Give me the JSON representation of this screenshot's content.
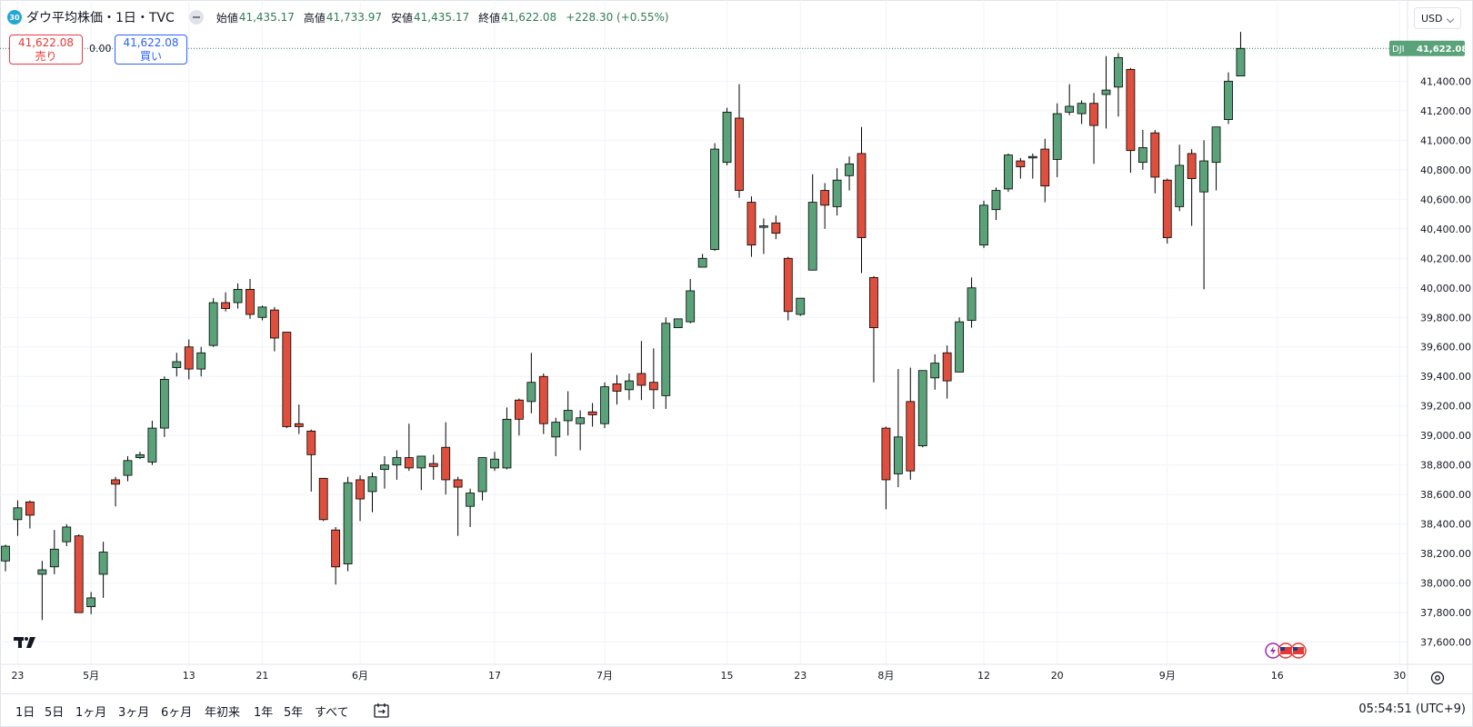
{
  "symbol": {
    "badge": "30",
    "title": "ダウ平均株価・1日・TVC",
    "open_label": "始値",
    "open": "41,435.17",
    "high_label": "高値",
    "high": "41,733.97",
    "low_label": "安値",
    "low": "41,435.17",
    "close_label": "終値",
    "close": "41,622.08",
    "change": "+228.30 (+0.55%)"
  },
  "trade": {
    "sell_price": "41,622.08",
    "sell_label": "売り",
    "spread": "0.00",
    "buy_price": "41,622.08",
    "buy_label": "買い"
  },
  "currency": "USD",
  "price_tag": {
    "ticker": "DJI",
    "value": "41,622.08"
  },
  "ranges": [
    "1日",
    "5日",
    "1ヶ月",
    "3ヶ月",
    "6ヶ月",
    "年初来",
    "1年",
    "5年",
    "すべて"
  ],
  "clock": "05:54:51 (UTC+9)",
  "colors": {
    "up": "#5aa37a",
    "down": "#df4f3d",
    "grid": "#f0f3fa",
    "dotted": "#2e7d50"
  },
  "icons": [
    "collapse-icon",
    "tradingview-logo-icon",
    "compare-range-icon",
    "settings-icon",
    "us-flag-icon",
    "lightning-icon"
  ],
  "chart_data": {
    "type": "candlestick",
    "ylim": [
      37450,
      41950
    ],
    "y_ticks": [
      37600,
      37800,
      38000,
      38200,
      38400,
      38600,
      38800,
      39000,
      39200,
      39400,
      39600,
      39800,
      40000,
      40200,
      40400,
      40600,
      40800,
      41000,
      41200,
      41400
    ],
    "y_tick_labels": [
      "37,600.00",
      "37,800.00",
      "38,000.00",
      "38,200.00",
      "38,400.00",
      "38,600.00",
      "38,800.00",
      "39,000.00",
      "39,200.00",
      "39,400.00",
      "39,600.00",
      "39,800.00",
      "40,000.00",
      "40,200.00",
      "40,400.00",
      "40,600.00",
      "40,800.00",
      "41,000.00",
      "41,200.00",
      "41,400.00"
    ],
    "x_labels": [
      {
        "i": 1,
        "label": "23"
      },
      {
        "i": 7,
        "label": "5月"
      },
      {
        "i": 15,
        "label": "13"
      },
      {
        "i": 21,
        "label": "21"
      },
      {
        "i": 29,
        "label": "6月"
      },
      {
        "i": 40,
        "label": "17"
      },
      {
        "i": 49,
        "label": "7月"
      },
      {
        "i": 59,
        "label": "15"
      },
      {
        "i": 65,
        "label": "23"
      },
      {
        "i": 72,
        "label": "8月"
      },
      {
        "i": 80,
        "label": "12"
      },
      {
        "i": 86,
        "label": "20"
      },
      {
        "i": 95,
        "label": "9月"
      },
      {
        "i": 104,
        "label": "16"
      },
      {
        "i": 114,
        "label": "30"
      }
    ],
    "candles": [
      {
        "o": 38150,
        "h": 38260,
        "l": 38080,
        "c": 38250
      },
      {
        "o": 38430,
        "h": 38560,
        "l": 38320,
        "c": 38510
      },
      {
        "o": 38550,
        "h": 38560,
        "l": 38370,
        "c": 38460
      },
      {
        "o": 38060,
        "h": 38150,
        "l": 37750,
        "c": 38090
      },
      {
        "o": 38110,
        "h": 38360,
        "l": 38060,
        "c": 38230
      },
      {
        "o": 38280,
        "h": 38400,
        "l": 38250,
        "c": 38380
      },
      {
        "o": 38320,
        "h": 38330,
        "l": 37800,
        "c": 37800
      },
      {
        "o": 37840,
        "h": 37940,
        "l": 37790,
        "c": 37900
      },
      {
        "o": 38060,
        "h": 38280,
        "l": 37900,
        "c": 38210
      },
      {
        "o": 38700,
        "h": 38720,
        "l": 38520,
        "c": 38670
      },
      {
        "o": 38730,
        "h": 38860,
        "l": 38690,
        "c": 38830
      },
      {
        "o": 38850,
        "h": 38890,
        "l": 38840,
        "c": 38870
      },
      {
        "o": 38820,
        "h": 39100,
        "l": 38800,
        "c": 39050
      },
      {
        "o": 39050,
        "h": 39400,
        "l": 38990,
        "c": 39380
      },
      {
        "o": 39460,
        "h": 39560,
        "l": 39400,
        "c": 39500
      },
      {
        "o": 39600,
        "h": 39650,
        "l": 39380,
        "c": 39450
      },
      {
        "o": 39450,
        "h": 39600,
        "l": 39400,
        "c": 39560
      },
      {
        "o": 39610,
        "h": 39930,
        "l": 39600,
        "c": 39900
      },
      {
        "o": 39900,
        "h": 39970,
        "l": 39840,
        "c": 39860
      },
      {
        "o": 39900,
        "h": 40030,
        "l": 39860,
        "c": 39990
      },
      {
        "o": 39990,
        "h": 40060,
        "l": 39790,
        "c": 39820
      },
      {
        "o": 39800,
        "h": 39880,
        "l": 39780,
        "c": 39870
      },
      {
        "o": 39850,
        "h": 39870,
        "l": 39570,
        "c": 39660
      },
      {
        "o": 39700,
        "h": 39700,
        "l": 39050,
        "c": 39060
      },
      {
        "o": 39080,
        "h": 39210,
        "l": 39010,
        "c": 39060
      },
      {
        "o": 39030,
        "h": 39040,
        "l": 38620,
        "c": 38870
      },
      {
        "o": 38710,
        "h": 38700,
        "l": 38420,
        "c": 38430
      },
      {
        "o": 38360,
        "h": 38380,
        "l": 37990,
        "c": 38110
      },
      {
        "o": 38130,
        "h": 38720,
        "l": 38080,
        "c": 38680
      },
      {
        "o": 38700,
        "h": 38730,
        "l": 38420,
        "c": 38570
      },
      {
        "o": 38620,
        "h": 38750,
        "l": 38480,
        "c": 38720
      },
      {
        "o": 38770,
        "h": 38860,
        "l": 38640,
        "c": 38800
      },
      {
        "o": 38800,
        "h": 38900,
        "l": 38700,
        "c": 38850
      },
      {
        "o": 38850,
        "h": 39080,
        "l": 38760,
        "c": 38780
      },
      {
        "o": 38780,
        "h": 38850,
        "l": 38630,
        "c": 38860
      },
      {
        "o": 38810,
        "h": 38870,
        "l": 38700,
        "c": 38790
      },
      {
        "o": 38920,
        "h": 39090,
        "l": 38600,
        "c": 38700
      },
      {
        "o": 38700,
        "h": 38720,
        "l": 38320,
        "c": 38650
      },
      {
        "o": 38520,
        "h": 38640,
        "l": 38380,
        "c": 38610
      },
      {
        "o": 38620,
        "h": 38830,
        "l": 38560,
        "c": 38850
      },
      {
        "o": 38780,
        "h": 38890,
        "l": 38760,
        "c": 38840
      },
      {
        "o": 38780,
        "h": 39190,
        "l": 38770,
        "c": 39110
      },
      {
        "o": 39240,
        "h": 39250,
        "l": 39000,
        "c": 39110
      },
      {
        "o": 39230,
        "h": 39560,
        "l": 39150,
        "c": 39360
      },
      {
        "o": 39400,
        "h": 39420,
        "l": 39010,
        "c": 39080
      },
      {
        "o": 38990,
        "h": 39120,
        "l": 38860,
        "c": 39090
      },
      {
        "o": 39100,
        "h": 39300,
        "l": 39000,
        "c": 39170
      },
      {
        "o": 39080,
        "h": 39170,
        "l": 38900,
        "c": 39120
      },
      {
        "o": 39160,
        "h": 39220,
        "l": 39060,
        "c": 39140
      },
      {
        "o": 39080,
        "h": 39360,
        "l": 39050,
        "c": 39330
      },
      {
        "o": 39350,
        "h": 39410,
        "l": 39210,
        "c": 39300
      },
      {
        "o": 39310,
        "h": 39420,
        "l": 39240,
        "c": 39370
      },
      {
        "o": 39420,
        "h": 39640,
        "l": 39240,
        "c": 39340
      },
      {
        "o": 39360,
        "h": 39590,
        "l": 39180,
        "c": 39310
      },
      {
        "o": 39270,
        "h": 39800,
        "l": 39180,
        "c": 39760
      },
      {
        "o": 39730,
        "h": 39790,
        "l": 39730,
        "c": 39790
      },
      {
        "o": 39770,
        "h": 40060,
        "l": 39760,
        "c": 39980
      },
      {
        "o": 40140,
        "h": 40230,
        "l": 40140,
        "c": 40200
      },
      {
        "o": 40260,
        "h": 40980,
        "l": 40250,
        "c": 40940
      },
      {
        "o": 40850,
        "h": 41220,
        "l": 40830,
        "c": 41190
      },
      {
        "o": 41150,
        "h": 41380,
        "l": 40610,
        "c": 40660
      },
      {
        "o": 40580,
        "h": 40620,
        "l": 40210,
        "c": 40290
      },
      {
        "o": 40410,
        "h": 40470,
        "l": 40230,
        "c": 40420
      },
      {
        "o": 40440,
        "h": 40490,
        "l": 40330,
        "c": 40370
      },
      {
        "o": 40200,
        "h": 40210,
        "l": 39780,
        "c": 39840
      },
      {
        "o": 39820,
        "h": 39920,
        "l": 39810,
        "c": 39930
      },
      {
        "o": 40120,
        "h": 40770,
        "l": 40120,
        "c": 40580
      },
      {
        "o": 40660,
        "h": 40710,
        "l": 40400,
        "c": 40560
      },
      {
        "o": 40550,
        "h": 40810,
        "l": 40490,
        "c": 40730
      },
      {
        "o": 40760,
        "h": 40890,
        "l": 40660,
        "c": 40840
      },
      {
        "o": 40910,
        "h": 41090,
        "l": 40100,
        "c": 40340
      },
      {
        "o": 40070,
        "h": 40080,
        "l": 39360,
        "c": 39730
      },
      {
        "o": 39050,
        "h": 39060,
        "l": 38500,
        "c": 38700
      },
      {
        "o": 38740,
        "h": 39450,
        "l": 38650,
        "c": 38990
      },
      {
        "o": 39230,
        "h": 39460,
        "l": 38700,
        "c": 38760
      },
      {
        "o": 38930,
        "h": 39430,
        "l": 38920,
        "c": 39440
      },
      {
        "o": 39390,
        "h": 39550,
        "l": 39310,
        "c": 39490
      },
      {
        "o": 39560,
        "h": 39610,
        "l": 39250,
        "c": 39370
      },
      {
        "o": 39430,
        "h": 39800,
        "l": 39430,
        "c": 39770
      },
      {
        "o": 39780,
        "h": 40070,
        "l": 39730,
        "c": 40000
      },
      {
        "o": 40290,
        "h": 40590,
        "l": 40270,
        "c": 40560
      },
      {
        "o": 40530,
        "h": 40680,
        "l": 40460,
        "c": 40660
      },
      {
        "o": 40670,
        "h": 40910,
        "l": 40650,
        "c": 40900
      },
      {
        "o": 40860,
        "h": 40880,
        "l": 40740,
        "c": 40820
      },
      {
        "o": 40880,
        "h": 40910,
        "l": 40740,
        "c": 40890
      },
      {
        "o": 40940,
        "h": 41010,
        "l": 40580,
        "c": 40690
      },
      {
        "o": 40870,
        "h": 41250,
        "l": 40750,
        "c": 41180
      },
      {
        "o": 41190,
        "h": 41380,
        "l": 41170,
        "c": 41230
      },
      {
        "o": 41180,
        "h": 41270,
        "l": 41110,
        "c": 41250
      },
      {
        "o": 41250,
        "h": 41320,
        "l": 40840,
        "c": 41100
      },
      {
        "o": 41310,
        "h": 41570,
        "l": 41080,
        "c": 41340
      },
      {
        "o": 41360,
        "h": 41590,
        "l": 41160,
        "c": 41560
      },
      {
        "o": 41480,
        "h": 41490,
        "l": 40780,
        "c": 40930
      },
      {
        "o": 40850,
        "h": 41070,
        "l": 40800,
        "c": 40950
      },
      {
        "o": 41050,
        "h": 41070,
        "l": 40640,
        "c": 40750
      },
      {
        "o": 40730,
        "h": 40740,
        "l": 40300,
        "c": 40340
      },
      {
        "o": 40550,
        "h": 40970,
        "l": 40520,
        "c": 40830
      },
      {
        "o": 40910,
        "h": 40940,
        "l": 40420,
        "c": 40740
      },
      {
        "o": 40650,
        "h": 41000,
        "l": 39990,
        "c": 40860
      },
      {
        "o": 40850,
        "h": 41090,
        "l": 40660,
        "c": 41090
      },
      {
        "o": 41140,
        "h": 41460,
        "l": 41110,
        "c": 41400
      },
      {
        "o": 41435.17,
        "h": 41733.97,
        "l": 41435.17,
        "c": 41622.08
      }
    ]
  }
}
